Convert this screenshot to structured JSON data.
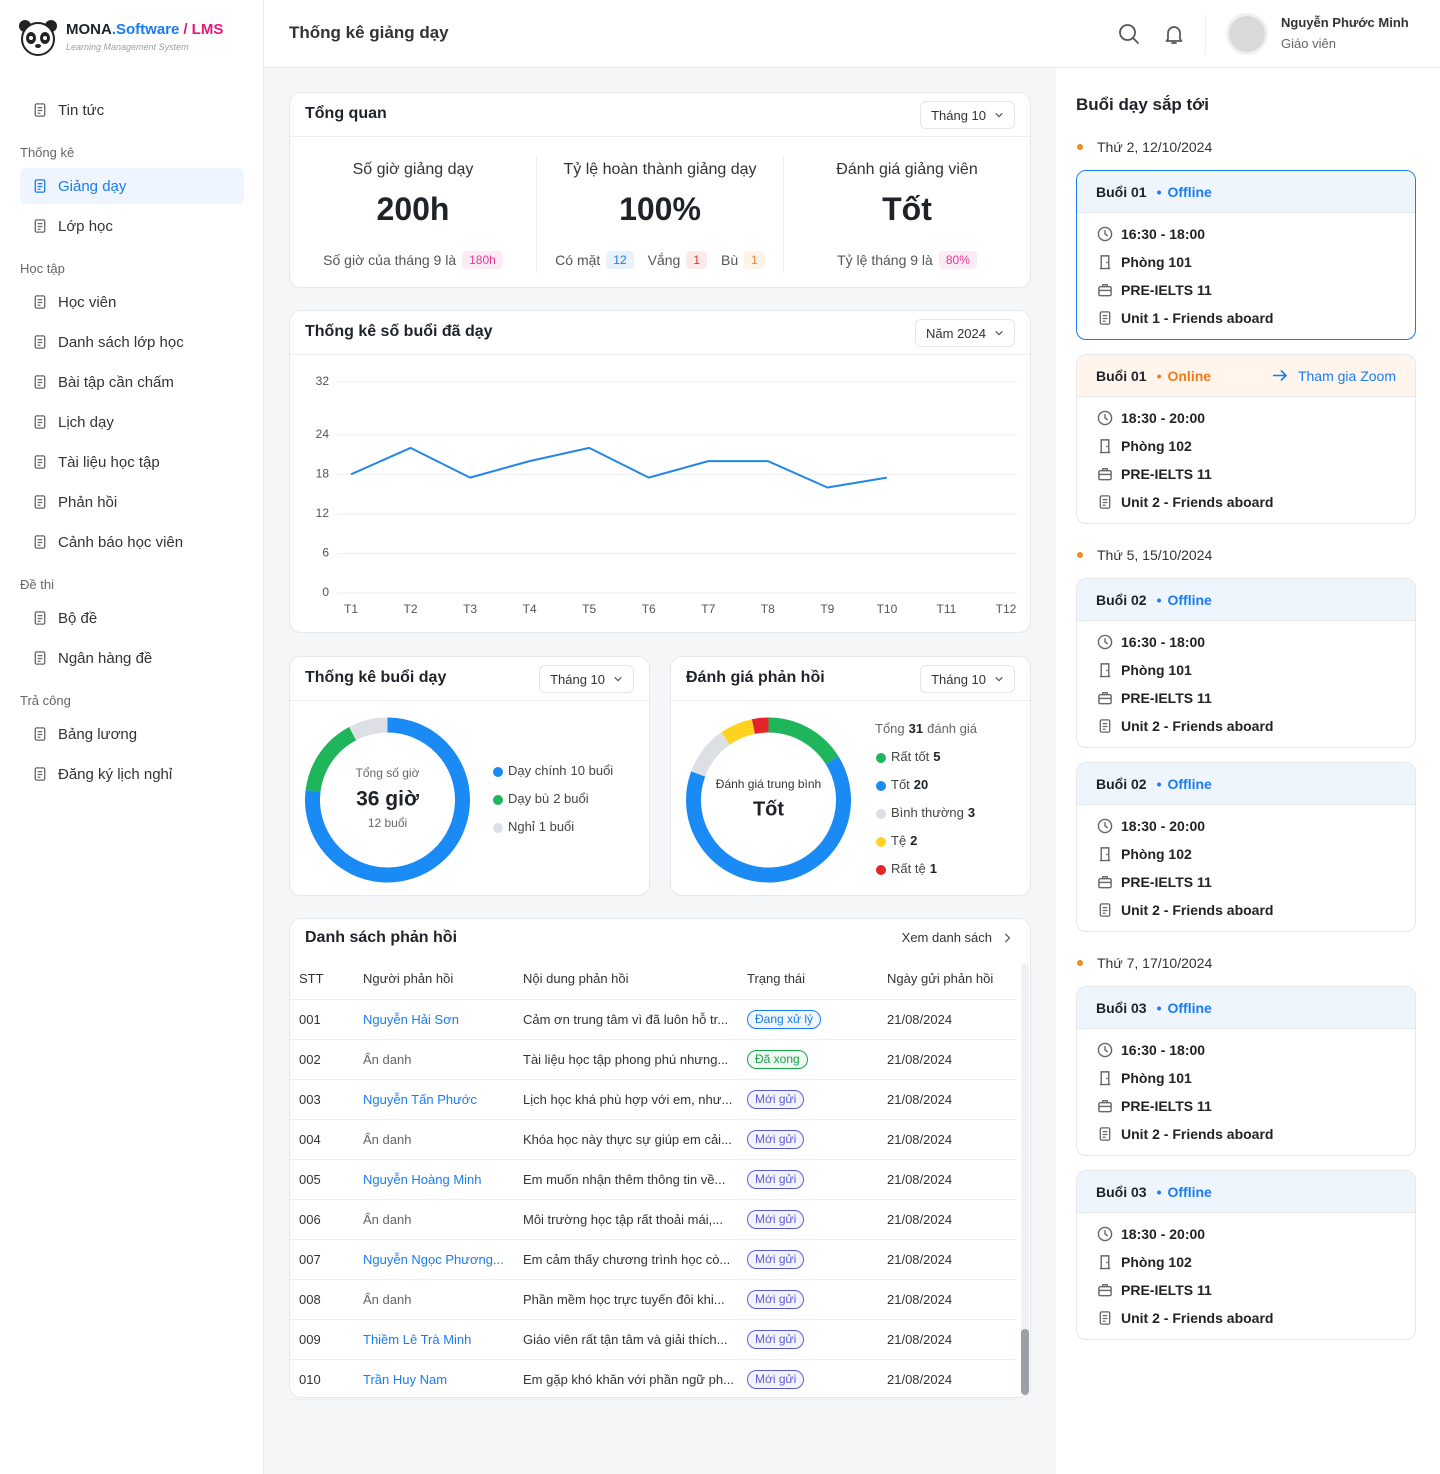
{
  "sidebar": {
    "brand": {
      "name": "MONA",
      "suffix": ".Software",
      "product": "/ LMS"
    },
    "tagline": "Learning Management System",
    "nav": [
      {
        "items": [
          {
            "label": "Tin tức"
          }
        ]
      },
      {
        "group": "Thống kê",
        "items": [
          {
            "label": "Giảng dạy",
            "active": true
          },
          {
            "label": "Lớp học"
          }
        ]
      },
      {
        "group": "Học tập",
        "items": [
          {
            "label": "Học viên"
          },
          {
            "label": "Danh sách lớp học"
          },
          {
            "label": "Bài tập cần chấm"
          },
          {
            "label": "Lịch dạy"
          },
          {
            "label": "Tài liệu học tập"
          },
          {
            "label": "Phản hồi"
          },
          {
            "label": "Cảnh báo học viên"
          }
        ]
      },
      {
        "group": "Đề thi",
        "items": [
          {
            "label": "Bộ đề"
          },
          {
            "label": "Ngân hàng đề"
          }
        ]
      },
      {
        "group": "Trả công",
        "items": [
          {
            "label": "Bảng lương"
          },
          {
            "label": "Đăng ký lịch nghỉ"
          }
        ]
      }
    ]
  },
  "header": {
    "title": "Thống kê giảng dạy",
    "user": {
      "name": "Nguyễn Phước Minh",
      "role": "Giáo viên"
    }
  },
  "overview": {
    "title": "Tổng quan",
    "filter": "Tháng 10",
    "stats": [
      {
        "label": "Số giờ giảng dạy",
        "value": "200h",
        "note": "Số giờ của tháng 9 là",
        "badge": "180h",
        "badge_color": "#e6399b"
      },
      {
        "label": "Tỷ lệ hoàn thành giảng dạy",
        "value": "100%",
        "parts": [
          {
            "label": "Có mặt",
            "value": 12,
            "color": "#1a7cf0"
          },
          {
            "label": "Vắng",
            "value": 1,
            "color": "#e5342b"
          },
          {
            "label": "Bù",
            "value": 1,
            "color": "#f08a24"
          }
        ]
      },
      {
        "label": "Đánh giá giảng viên",
        "value": "Tốt",
        "note": "Tỷ lệ tháng 9 là",
        "badge": "80%",
        "badge_color": "#e6399b"
      }
    ]
  },
  "sessions_chart": {
    "type": "line",
    "title": "Thống kê số buổi đã dạy",
    "filter": "Năm 2024",
    "categories": [
      "T1",
      "T2",
      "T3",
      "T4",
      "T5",
      "T6",
      "T7",
      "T8",
      "T9",
      "T10",
      "T11",
      "T12"
    ],
    "values": [
      18,
      22,
      17.5,
      20,
      22,
      17.5,
      20,
      20,
      16,
      17.5,
      null,
      null
    ],
    "ylim": [
      0,
      32
    ],
    "yticks": [
      0,
      6,
      12,
      18,
      24,
      32
    ],
    "color": "#2387e8",
    "grid": true
  },
  "lesson_chart": {
    "type": "donut",
    "title": "Thống kê buổi dạy",
    "filter": "Tháng 10",
    "center": {
      "label": "Tổng số giờ",
      "value": "36 giờ",
      "note": "12 buổi"
    },
    "categories": [
      "Dạy chính",
      "Dạy bù",
      "Nghỉ"
    ],
    "values": [
      10,
      2,
      1
    ],
    "value_labels": [
      "10 buổi",
      "2 buổi",
      "1 buổi"
    ],
    "colors": [
      "#1a8af5",
      "#1fb55a",
      "#dcdfe4"
    ]
  },
  "feedback_chart": {
    "type": "donut",
    "title": "Đánh giá phản hồi",
    "filter": "Tháng 10",
    "center": {
      "label": "Đánh giá trung bình",
      "value": "Tốt"
    },
    "total": {
      "prefix": "Tổng",
      "value": 31,
      "suffix": "đánh giá"
    },
    "categories": [
      "Rất tốt",
      "Tốt",
      "Bình thường",
      "Tệ",
      "Rất tệ"
    ],
    "values": [
      5,
      20,
      3,
      2,
      1
    ],
    "colors": [
      "#1fb55a",
      "#1a8af5",
      "#dcdfe4",
      "#ffd21f",
      "#e5232b"
    ]
  },
  "feedback_table": {
    "title": "Danh sách phản hồi",
    "link": "Xem danh sách",
    "columns": [
      "STT",
      "Người phản hồi",
      "Nội dung phản hồi",
      "Trạng thái",
      "Ngày gửi phản hồi"
    ],
    "rows": [
      {
        "id": "001",
        "name": "Nguyễn Hải Sơn",
        "content": "Cảm ơn trung tâm vì đã luôn hỗ tr...",
        "status": "Đang xử lý",
        "status_color": "#1a7cf0",
        "date": "21/08/2024"
      },
      {
        "id": "002",
        "name": "Ẩn danh",
        "anonymous": true,
        "content": "Tài liệu học tập phong phú nhưng...",
        "status": "Đã xong",
        "status_color": "#17a34a",
        "date": "21/08/2024"
      },
      {
        "id": "003",
        "name": "Nguyễn Tấn Phước",
        "content": "Lịch học khá phù hợp với em, như...",
        "status": "Mới gửi",
        "status_color": "#5b5bd6",
        "date": "21/08/2024"
      },
      {
        "id": "004",
        "name": "Ẩn danh",
        "anonymous": true,
        "content": "Khóa học này thực sự giúp em cải...",
        "status": "Mới gửi",
        "status_color": "#5b5bd6",
        "date": "21/08/2024"
      },
      {
        "id": "005",
        "name": "Nguyễn Hoàng Minh",
        "content": "Em muốn nhận thêm thông tin về...",
        "status": "Mới gửi",
        "status_color": "#5b5bd6",
        "date": "21/08/2024"
      },
      {
        "id": "006",
        "name": "Ẩn danh",
        "anonymous": true,
        "content": "Môi trường học tập rất thoải mái,...",
        "status": "Mới gửi",
        "status_color": "#5b5bd6",
        "date": "21/08/2024"
      },
      {
        "id": "007",
        "name": "Nguyễn Ngọc Phương...",
        "content": "Em cảm thấy chương trình học cò...",
        "status": "Mới gửi",
        "status_color": "#5b5bd6",
        "date": "21/08/2024"
      },
      {
        "id": "008",
        "name": "Ẩn danh",
        "anonymous": true,
        "content": "Phần mềm học trực tuyến đôi khi...",
        "status": "Mới gửi",
        "status_color": "#5b5bd6",
        "date": "21/08/2024"
      },
      {
        "id": "009",
        "name": "Thiềm Lê Trà Minh",
        "content": "Giáo viên rất tận tâm và giải thích...",
        "status": "Mới gửi",
        "status_color": "#5b5bd6",
        "date": "21/08/2024"
      },
      {
        "id": "010",
        "name": "Trần Huy Nam",
        "content": "Em gặp khó khăn với phần ngữ ph...",
        "status": "Mới gửi",
        "status_color": "#5b5bd6",
        "date": "21/08/2024"
      }
    ]
  },
  "upcoming": {
    "title": "Buổi dạy sắp tới",
    "days": [
      {
        "date": "Thứ 2, 12/10/2024",
        "sessions": [
          {
            "name": "Buổi 01",
            "mode": "Offline",
            "time": "16:30 - 18:00",
            "room": "Phòng 101",
            "course": "PRE-IELTS 11",
            "unit": "Unit 1 - Friends aboard",
            "selected": true
          },
          {
            "name": "Buổi 01",
            "mode": "Online",
            "online": true,
            "action": "Tham gia Zoom",
            "time": "18:30 - 20:00",
            "room": "Phòng 102",
            "course": "PRE-IELTS 11",
            "unit": "Unit 2 - Friends aboard"
          }
        ]
      },
      {
        "date": "Thứ 5, 15/10/2024",
        "sessions": [
          {
            "name": "Buổi 02",
            "mode": "Offline",
            "time": "16:30 - 18:00",
            "room": "Phòng 101",
            "course": "PRE-IELTS 11",
            "unit": "Unit 2 - Friends aboard"
          },
          {
            "name": "Buổi 02",
            "mode": "Offline",
            "time": "18:30 - 20:00",
            "room": "Phòng 102",
            "course": "PRE-IELTS 11",
            "unit": "Unit 2 - Friends aboard"
          }
        ]
      },
      {
        "date": "Thứ 7, 17/10/2024",
        "sessions": [
          {
            "name": "Buổi 03",
            "mode": "Offline",
            "time": "16:30 - 18:00",
            "room": "Phòng 101",
            "course": "PRE-IELTS 11",
            "unit": "Unit 2 - Friends aboard"
          },
          {
            "name": "Buổi 03",
            "mode": "Offline",
            "time": "18:30 - 20:00",
            "room": "Phòng 102",
            "course": "PRE-IELTS 11",
            "unit": "Unit 2 - Friends aboard"
          }
        ]
      }
    ]
  }
}
